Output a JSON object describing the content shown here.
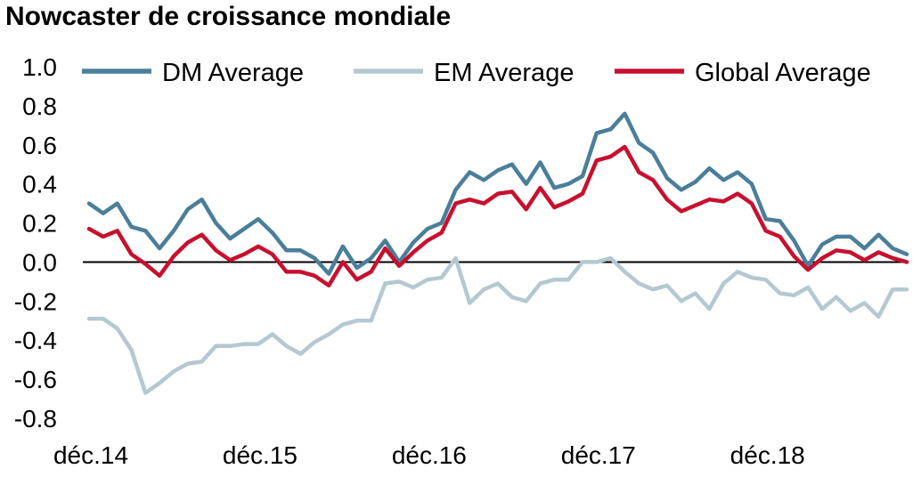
{
  "chart_data": {
    "type": "line",
    "title": "Nowcaster de croissance mondiale",
    "xlabel": "",
    "ylabel": "",
    "ylim": [
      -0.8,
      1.0
    ],
    "y_ticks": [
      "1.0",
      "0.8",
      "0.6",
      "0.4",
      "0.2",
      "0.0",
      "-0.2",
      "-0.4",
      "-0.6",
      "-0.8"
    ],
    "x_tick_labels": [
      "déc.14",
      "déc.15",
      "déc.16",
      "déc.17",
      "déc.18"
    ],
    "x_tick_indices": [
      0,
      12,
      24,
      36,
      48
    ],
    "zero_line": true,
    "grid": false,
    "legend_position": "top",
    "series": [
      {
        "name": "DM Average",
        "color": "#4A7E9A",
        "values": [
          0.3,
          0.25,
          0.3,
          0.18,
          0.16,
          0.07,
          0.16,
          0.27,
          0.32,
          0.2,
          0.12,
          0.17,
          0.22,
          0.15,
          0.06,
          0.06,
          0.02,
          -0.06,
          0.08,
          -0.03,
          0.02,
          0.11,
          0.0,
          0.1,
          0.17,
          0.2,
          0.37,
          0.46,
          0.42,
          0.47,
          0.5,
          0.4,
          0.51,
          0.38,
          0.4,
          0.44,
          0.66,
          0.68,
          0.76,
          0.61,
          0.56,
          0.43,
          0.37,
          0.41,
          0.48,
          0.42,
          0.46,
          0.4,
          0.22,
          0.21,
          0.11,
          -0.02,
          0.09,
          0.13,
          0.13,
          0.07,
          0.14,
          0.07,
          0.04
        ]
      },
      {
        "name": "EM Average",
        "color": "#B4C8D1",
        "values": [
          -0.29,
          -0.29,
          -0.34,
          -0.45,
          -0.67,
          -0.62,
          -0.56,
          -0.52,
          -0.51,
          -0.43,
          -0.43,
          -0.42,
          -0.42,
          -0.37,
          -0.43,
          -0.47,
          -0.41,
          -0.37,
          -0.32,
          -0.3,
          -0.3,
          -0.11,
          -0.1,
          -0.13,
          -0.09,
          -0.08,
          0.02,
          -0.21,
          -0.14,
          -0.11,
          -0.18,
          -0.2,
          -0.11,
          -0.09,
          -0.09,
          0.0,
          0.0,
          0.02,
          -0.05,
          -0.11,
          -0.14,
          -0.12,
          -0.2,
          -0.16,
          -0.24,
          -0.11,
          -0.05,
          -0.08,
          -0.09,
          -0.16,
          -0.17,
          -0.13,
          -0.24,
          -0.18,
          -0.25,
          -0.21,
          -0.28,
          -0.14,
          -0.14
        ]
      },
      {
        "name": "Global Average",
        "color": "#C8102E",
        "values": [
          0.17,
          0.13,
          0.16,
          0.04,
          -0.01,
          -0.07,
          0.03,
          0.1,
          0.14,
          0.06,
          0.01,
          0.04,
          0.08,
          0.04,
          -0.05,
          -0.05,
          -0.07,
          -0.12,
          0.0,
          -0.09,
          -0.05,
          0.07,
          -0.02,
          0.05,
          0.11,
          0.15,
          0.3,
          0.32,
          0.3,
          0.35,
          0.36,
          0.27,
          0.38,
          0.28,
          0.31,
          0.35,
          0.52,
          0.54,
          0.59,
          0.46,
          0.42,
          0.32,
          0.26,
          0.29,
          0.32,
          0.31,
          0.35,
          0.3,
          0.16,
          0.13,
          0.03,
          -0.04,
          0.02,
          0.06,
          0.05,
          0.01,
          0.05,
          0.02,
          0.0
        ]
      }
    ]
  }
}
